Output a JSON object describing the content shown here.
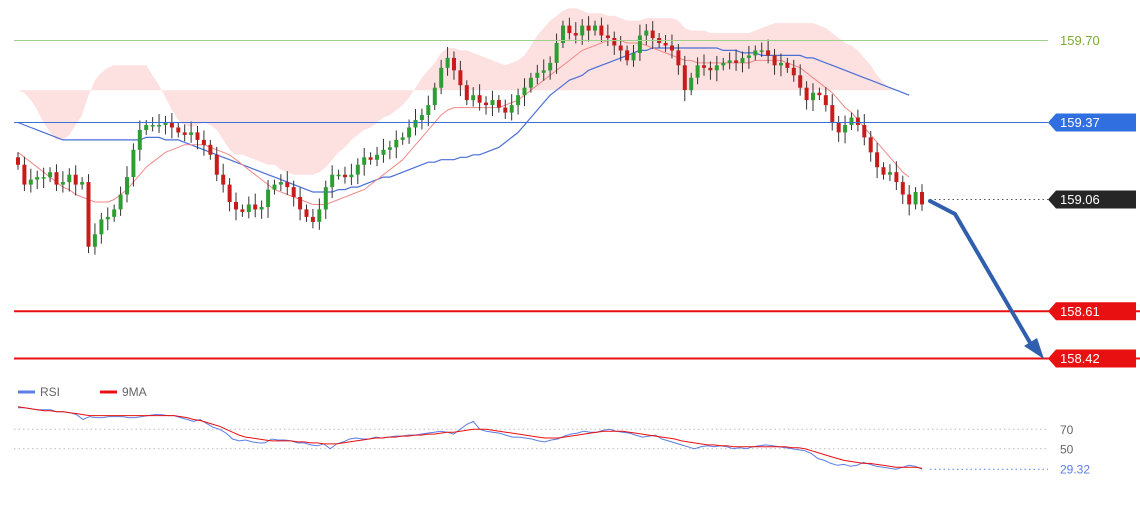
{
  "chart_data": [
    {
      "type": "candlestick",
      "title": "",
      "xlabel": "",
      "ylabel": "",
      "ylim": [
        158.36,
        159.82
      ],
      "levels": [
        {
          "value": 159.7,
          "label": "159.70",
          "style": "thin",
          "color": "#9fd08a",
          "label_bg": "none",
          "label_color": "#7aab36"
        },
        {
          "value": 159.37,
          "label": "159.37",
          "style": "thin",
          "color": "#3b6fd8",
          "label_bg": "#2f6fe0",
          "label_color": "#ffffff"
        },
        {
          "value": 159.06,
          "label": "159.06",
          "style": "dotted",
          "color": "#555555",
          "label_bg": "#262626",
          "label_color": "#ffffff"
        },
        {
          "value": 158.61,
          "label": "158.61",
          "style": "thick",
          "color": "#e81010",
          "label_bg": "#e81010",
          "label_color": "#ffffff"
        },
        {
          "value": 158.42,
          "label": "158.42",
          "style": "thick",
          "color": "#e81010",
          "label_bg": "#e81010",
          "label_color": "#ffffff"
        }
      ],
      "closes": [
        159.2,
        159.12,
        159.14,
        159.15,
        159.15,
        159.17,
        159.12,
        159.13,
        159.16,
        159.12,
        159.13,
        158.87,
        158.92,
        158.98,
        158.99,
        159.02,
        159.08,
        159.15,
        159.26,
        159.34,
        159.36,
        159.36,
        159.36,
        159.37,
        159.35,
        159.33,
        159.32,
        159.33,
        159.3,
        159.28,
        159.24,
        159.16,
        159.12,
        159.05,
        159.02,
        159.01,
        159.04,
        159.02,
        159.03,
        159.1,
        159.12,
        159.13,
        159.11,
        159.07,
        159.02,
        158.99,
        158.97,
        159.02,
        159.11,
        159.16,
        159.16,
        159.15,
        159.16,
        159.2,
        159.23,
        159.22,
        159.24,
        159.26,
        159.27,
        159.3,
        159.31,
        159.35,
        159.38,
        159.4,
        159.44,
        159.51,
        159.59,
        159.63,
        159.58,
        159.52,
        159.46,
        159.48,
        159.45,
        159.44,
        159.46,
        159.43,
        159.41,
        159.44,
        159.48,
        159.51,
        159.55,
        159.57,
        159.58,
        159.61,
        159.69,
        159.76,
        159.73,
        159.72,
        159.76,
        159.74,
        159.76,
        159.72,
        159.71,
        159.68,
        159.66,
        159.62,
        159.65,
        159.72,
        159.74,
        159.71,
        159.69,
        159.68,
        159.66,
        159.6,
        159.5,
        159.55,
        159.6,
        159.59,
        159.58,
        159.6,
        159.61,
        159.62,
        159.61,
        159.63,
        159.64,
        159.66,
        159.66,
        159.64,
        159.6,
        159.61,
        159.59,
        159.56,
        159.51,
        159.46,
        159.49,
        159.48,
        159.44,
        159.37,
        159.33,
        159.36,
        159.39,
        159.36,
        159.31,
        159.25,
        159.19,
        159.16,
        159.17,
        159.13,
        159.08,
        159.04,
        159.09,
        159.04
      ],
      "bb_upper": [
        159.5,
        159.49,
        159.46,
        159.42,
        159.37,
        159.33,
        159.3,
        159.3,
        159.32,
        159.36,
        159.4,
        159.48,
        159.54,
        159.57,
        159.59,
        159.6,
        159.6,
        159.6,
        159.6,
        159.6,
        159.6,
        159.56,
        159.52,
        159.47,
        159.42,
        159.38,
        159.36,
        159.35,
        159.36,
        159.37,
        159.36,
        159.34,
        159.3,
        159.26,
        159.24,
        159.24,
        159.23,
        159.22,
        159.21,
        159.2,
        159.2,
        159.18,
        159.17,
        159.16,
        159.16,
        159.16,
        159.16,
        159.17,
        159.19,
        159.22,
        159.25,
        159.27,
        159.3,
        159.32,
        159.34,
        159.35,
        159.37,
        159.39,
        159.4,
        159.42,
        159.44,
        159.47,
        159.51,
        159.55,
        159.58,
        159.61,
        159.65,
        159.67,
        159.67,
        159.66,
        159.66,
        159.65,
        159.64,
        159.63,
        159.62,
        159.61,
        159.6,
        159.61,
        159.62,
        159.64,
        159.68,
        159.72,
        159.75,
        159.78,
        159.8,
        159.82,
        159.83,
        159.83,
        159.82,
        159.81,
        159.81,
        159.81,
        159.8,
        159.8,
        159.79,
        159.78,
        159.78,
        159.78,
        159.79,
        159.79,
        159.79,
        159.79,
        159.79,
        159.78,
        159.75,
        159.74,
        159.74,
        159.74,
        159.73,
        159.73,
        159.73,
        159.73,
        159.73,
        159.73,
        159.73,
        159.74,
        159.75,
        159.76,
        159.77,
        159.77,
        159.77,
        159.77,
        159.77,
        159.77,
        159.77,
        159.76,
        159.75,
        159.73,
        159.71,
        159.69,
        159.68,
        159.66,
        159.63,
        159.6,
        159.56,
        159.53,
        159.51,
        159.5
      ],
      "bb_lower": [
        159.0,
        158.98,
        158.96,
        158.93,
        158.89,
        158.85,
        158.82,
        158.81,
        158.81,
        158.82,
        158.84,
        158.86,
        158.88,
        158.89,
        158.89,
        158.88,
        158.88,
        158.88,
        158.88,
        158.88,
        158.88,
        158.88,
        158.88,
        158.89,
        158.9,
        158.91,
        158.92,
        158.93,
        158.94,
        158.95,
        158.96,
        158.97,
        158.97,
        158.97,
        158.97,
        158.96,
        158.96,
        158.95,
        158.94,
        158.93,
        158.92,
        158.91,
        158.91,
        158.9,
        158.9,
        158.89,
        158.89,
        158.89,
        158.9,
        158.91,
        158.92,
        158.93,
        158.94,
        158.95,
        158.96,
        158.97,
        158.97,
        158.97,
        158.97,
        158.97,
        158.98,
        158.99,
        159.0,
        159.02,
        159.04,
        159.07,
        159.1,
        159.13,
        159.15,
        159.17,
        159.19,
        159.2,
        159.21,
        159.22,
        159.22,
        159.22,
        159.22,
        159.22,
        159.22,
        159.23,
        159.24,
        159.26,
        159.28,
        159.3,
        159.31,
        159.32,
        159.33,
        159.34,
        159.35,
        159.36,
        159.38,
        159.4,
        159.42,
        159.44,
        159.46,
        159.47,
        159.48,
        159.49,
        159.5,
        159.51,
        159.51,
        159.51,
        159.51,
        159.5,
        159.49,
        159.48,
        159.47,
        159.47,
        159.47,
        159.47,
        159.47,
        159.47,
        159.47,
        159.47,
        159.47,
        159.47,
        159.47,
        159.47,
        159.47,
        159.47,
        159.46,
        159.45,
        159.43,
        159.4,
        159.36,
        159.33,
        159.29,
        159.24,
        159.19,
        159.16,
        159.14,
        159.11,
        159.08,
        159.05,
        159.02,
        158.99,
        158.96,
        158.94,
        158.92,
        158.91
      ],
      "ma_slow": [
        159.37,
        159.36,
        159.35,
        159.34,
        159.33,
        159.32,
        159.31,
        159.3,
        159.3,
        159.3,
        159.3,
        159.3,
        159.3,
        159.3,
        159.3,
        159.3,
        159.3,
        159.3,
        159.3,
        159.3,
        159.31,
        159.31,
        159.31,
        159.3,
        159.3,
        159.3,
        159.29,
        159.28,
        159.27,
        159.26,
        159.25,
        159.24,
        159.23,
        159.22,
        159.21,
        159.2,
        159.19,
        159.18,
        159.17,
        159.16,
        159.15,
        159.14,
        159.13,
        159.12,
        159.11,
        159.1,
        159.09,
        159.09,
        159.09,
        159.09,
        159.1,
        159.1,
        159.11,
        159.11,
        159.12,
        159.13,
        159.14,
        159.15,
        159.15,
        159.16,
        159.17,
        159.18,
        159.19,
        159.2,
        159.21,
        159.21,
        159.22,
        159.22,
        159.22,
        159.23,
        159.23,
        159.24,
        159.24,
        159.25,
        159.26,
        159.27,
        159.29,
        159.31,
        159.33,
        159.36,
        159.39,
        159.42,
        159.45,
        159.48,
        159.5,
        159.52,
        159.54,
        159.55,
        159.56,
        159.58,
        159.59,
        159.6,
        159.61,
        159.62,
        159.63,
        159.64,
        159.65,
        159.66,
        159.66,
        159.67,
        159.67,
        159.67,
        159.67,
        159.67,
        159.67,
        159.67,
        159.67,
        159.67,
        159.67,
        159.67,
        159.66,
        159.66,
        159.66,
        159.65,
        159.65,
        159.65,
        159.64,
        159.64,
        159.64,
        159.64,
        159.64,
        159.64,
        159.64,
        159.63,
        159.63,
        159.62,
        159.61,
        159.6,
        159.59,
        159.58,
        159.57,
        159.56,
        159.55,
        159.54,
        159.53,
        159.52,
        159.51,
        159.5,
        159.49,
        159.48
      ],
      "ma_fast": [
        159.25,
        159.23,
        159.21,
        159.19,
        159.17,
        159.15,
        159.13,
        159.11,
        159.1,
        159.08,
        159.07,
        159.06,
        159.05,
        159.05,
        159.05,
        159.06,
        159.08,
        159.1,
        159.13,
        159.16,
        159.19,
        159.21,
        159.23,
        159.25,
        159.26,
        159.27,
        159.28,
        159.28,
        159.28,
        159.28,
        159.27,
        159.26,
        159.25,
        159.24,
        159.22,
        159.2,
        159.18,
        159.16,
        159.14,
        159.12,
        159.1,
        159.09,
        159.08,
        159.07,
        159.06,
        159.05,
        159.04,
        159.04,
        159.04,
        159.05,
        159.06,
        159.07,
        159.08,
        159.09,
        159.1,
        159.12,
        159.14,
        159.16,
        159.18,
        159.2,
        159.22,
        159.25,
        159.28,
        159.31,
        159.34,
        159.37,
        159.4,
        159.42,
        159.43,
        159.43,
        159.43,
        159.43,
        159.43,
        159.43,
        159.43,
        159.43,
        159.44,
        159.45,
        159.46,
        159.48,
        159.5,
        159.52,
        159.54,
        159.56,
        159.58,
        159.6,
        159.62,
        159.64,
        159.66,
        159.67,
        159.68,
        159.69,
        159.7,
        159.7,
        159.7,
        159.69,
        159.69,
        159.69,
        159.68,
        159.67,
        159.66,
        159.65,
        159.64,
        159.63,
        159.62,
        159.62,
        159.61,
        159.61,
        159.61,
        159.61,
        159.61,
        159.61,
        159.61,
        159.61,
        159.61,
        159.62,
        159.62,
        159.62,
        159.62,
        159.62,
        159.61,
        159.6,
        159.59,
        159.57,
        159.55,
        159.53,
        159.51,
        159.49,
        159.46,
        159.43,
        159.41,
        159.38,
        159.35,
        159.32,
        159.29,
        159.26,
        159.23,
        159.2,
        159.17,
        159.15
      ]
    },
    {
      "type": "line",
      "title": "",
      "xlabel": "",
      "ylabel": "",
      "ylim": [
        20,
        100
      ],
      "legend_position": "top-left",
      "ticks": [
        70,
        50
      ],
      "last_value_label": "29.32",
      "series": [
        {
          "name": "RSI",
          "color": "#5b7ee5",
          "values": [
            92,
            92,
            91,
            90,
            90,
            90,
            88,
            88,
            87,
            85,
            80,
            83,
            82,
            82,
            83,
            83,
            83,
            82,
            82,
            83,
            84,
            85,
            85,
            84,
            84,
            82,
            80,
            78,
            80,
            76,
            72,
            70,
            66,
            60,
            58,
            59,
            57,
            56,
            56,
            60,
            59,
            59,
            58,
            56,
            56,
            54,
            53,
            55,
            50,
            55,
            57,
            60,
            61,
            60,
            60,
            62,
            61,
            62,
            63,
            63,
            64,
            64,
            65,
            66,
            67,
            68,
            67,
            65,
            70,
            75,
            78,
            70,
            68,
            67,
            66,
            64,
            62,
            62,
            61,
            60,
            58,
            57,
            59,
            60,
            63,
            65,
            66,
            68,
            67,
            67,
            69,
            70,
            68,
            67,
            66,
            64,
            62,
            63,
            64,
            60,
            58,
            56,
            54,
            52,
            50,
            52,
            53,
            52,
            53,
            52,
            50,
            51,
            50,
            52,
            53,
            54,
            53,
            52,
            51,
            50,
            49,
            48,
            45,
            40,
            38,
            35,
            33,
            34,
            32,
            33,
            36,
            34,
            32,
            31,
            30,
            29,
            31,
            33,
            32,
            29
          ]
        },
        {
          "name": "9MA",
          "color": "#e81010",
          "values": [
            93,
            92,
            91,
            90,
            89,
            89,
            88,
            88,
            87,
            86,
            85,
            84,
            84,
            84,
            84,
            84,
            84,
            84,
            84,
            84,
            84,
            84,
            84,
            84,
            84,
            83,
            82,
            80,
            79,
            77,
            75,
            73,
            70,
            67,
            64,
            62,
            61,
            60,
            59,
            58,
            58,
            58,
            58,
            57,
            57,
            56,
            56,
            55,
            55,
            55,
            56,
            57,
            58,
            59,
            60,
            61,
            61,
            62,
            62,
            63,
            63,
            64,
            64,
            65,
            65,
            66,
            67,
            67,
            68,
            69,
            70,
            70,
            70,
            69,
            68,
            67,
            66,
            65,
            64,
            63,
            62,
            61,
            61,
            61,
            62,
            63,
            64,
            65,
            66,
            67,
            68,
            68,
            68,
            68,
            67,
            66,
            65,
            64,
            63,
            62,
            61,
            60,
            58,
            57,
            56,
            55,
            54,
            54,
            53,
            53,
            52,
            52,
            52,
            52,
            52,
            52,
            52,
            52,
            52,
            51,
            51,
            50,
            48,
            46,
            44,
            42,
            40,
            38,
            37,
            36,
            35,
            35,
            34,
            33,
            32,
            31,
            31,
            31,
            31,
            30
          ]
        }
      ]
    }
  ]
}
